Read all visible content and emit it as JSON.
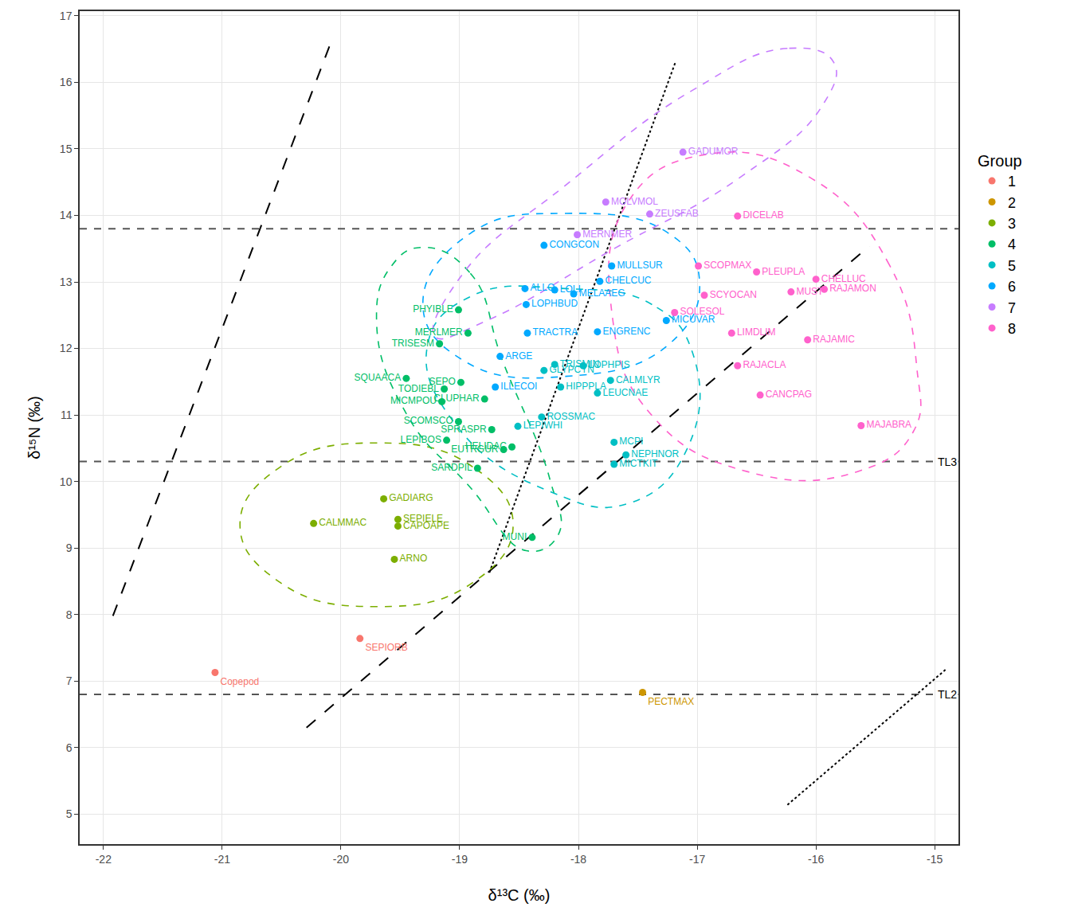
{
  "chart_data": {
    "type": "scatter",
    "x_label": "δ¹³C (‰)",
    "y_label": "δ¹⁵N (‰)",
    "xlim": [
      -22.2,
      -14.8
    ],
    "ylim": [
      4.55,
      17.07
    ],
    "xticks": [
      -22,
      -21,
      -20,
      -19,
      -18,
      -17,
      -16,
      -15
    ],
    "yticks": [
      5,
      6,
      7,
      8,
      9,
      10,
      11,
      12,
      13,
      14,
      15,
      16,
      17
    ],
    "grid": true,
    "legend": "right",
    "legend_title": "Group",
    "marker": "circle",
    "series": [
      {
        "name": "1",
        "color": "#F8766D",
        "labels": [
          "Copepod",
          "SEPIORB"
        ],
        "x": [
          -21.06,
          -19.84
        ],
        "y": [
          7.13,
          7.64
        ],
        "ellipse_x": [],
        "ellipse_y": []
      },
      {
        "name": "2",
        "color": "#CD9600",
        "labels": [
          "PECTMAX"
        ],
        "x": [
          -17.46
        ],
        "y": [
          6.83
        ],
        "ellipse_x": [],
        "ellipse_y": []
      },
      {
        "name": "3",
        "color": "#7CAE00",
        "labels": [
          "GADIARG",
          "SEPIELE",
          "CAPOAPE",
          "CALMMAC",
          "ARNO"
        ],
        "x": [
          -19.64,
          -19.52,
          -19.52,
          -20.23,
          -19.55
        ],
        "y": [
          9.74,
          9.43,
          9.33,
          9.37,
          8.83
        ],
        "ellipse_x": [
          -18.55,
          -18.89,
          -19.7,
          -20.51,
          -20.85,
          -20.51,
          -19.7,
          -18.89
        ],
        "ellipse_y": [
          9.35,
          10.22,
          10.58,
          10.22,
          9.35,
          8.48,
          8.12,
          8.48
        ]
      },
      {
        "name": "4",
        "color": "#00BE67",
        "labels": [
          "PHYIBLE",
          "MERLMER",
          "TRISESM",
          "SQUAACA",
          "SEPO",
          "TODIEBL",
          "MICMPOU",
          "SCOMSCO",
          "LEPIBOS",
          "SARDPIL",
          "EUTRGUR",
          "CLUPHAR",
          "SPRASPR",
          "HELIDAC",
          "MUNI"
        ],
        "x": [
          -19.01,
          -18.93,
          -19.17,
          -19.45,
          -18.99,
          -19.13,
          -19.15,
          -19.01,
          -19.11,
          -18.85,
          -18.63,
          -18.79,
          -18.73,
          -18.56,
          -18.39
        ],
        "y": [
          12.58,
          12.23,
          12.07,
          11.55,
          11.49,
          11.39,
          11.2,
          10.9,
          10.62,
          10.2,
          10.48,
          11.24,
          10.78,
          10.52,
          9.16
        ],
        "ellipse_x": [
          -19.31,
          -18.91,
          -18.64,
          -18.24,
          -18.17,
          -18.44,
          -18.91,
          -19.44,
          -19.7,
          -19.57
        ],
        "ellipse_y": [
          13.52,
          13.13,
          11.82,
          10.03,
          9.2,
          8.96,
          9.91,
          10.99,
          12.42,
          13.25
        ]
      },
      {
        "name": "5",
        "color": "#00BFC4",
        "labels": [
          "TRISMIN",
          "LOPHPIS",
          "GLYPCYN",
          "HIPPPLA",
          "LEUCNAE",
          "CALMLYR",
          "ROSSMAC",
          "LEPIWHI",
          "MCPI",
          "NEPHNOR",
          "MICTKIT"
        ],
        "x": [
          -18.2,
          -17.96,
          -18.29,
          -18.15,
          -17.84,
          -17.73,
          -18.31,
          -18.51,
          -17.7,
          -17.6,
          -17.7
        ],
        "y": [
          11.76,
          11.74,
          11.67,
          11.42,
          11.33,
          11.52,
          10.97,
          10.83,
          10.59,
          10.4,
          10.26
        ],
        "ellipse_x": [
          -17.04,
          -17.38,
          -18.11,
          -18.91,
          -19.27,
          -19.04,
          -18.24,
          -17.58,
          -17.08
        ],
        "ellipse_y": [
          11.94,
          12.66,
          12.9,
          12.78,
          12.06,
          10.87,
          9.85,
          9.67,
          10.51
        ]
      },
      {
        "name": "6",
        "color": "#00A9FF",
        "labels": [
          "CONGCON",
          "ALLO",
          "LOLI",
          "MULLSUR",
          "CHELCUC",
          "MELAAEG",
          "LOPHBUD",
          "TRACTRA",
          "ARGE",
          "ILLECOI",
          "ENGRENC",
          "MICUVAR"
        ],
        "x": [
          -18.29,
          -18.45,
          -18.2,
          -17.72,
          -17.82,
          -18.04,
          -18.44,
          -18.43,
          -18.66,
          -18.7,
          -17.84,
          -17.26
        ],
        "y": [
          13.55,
          12.9,
          12.88,
          13.24,
          13.01,
          12.82,
          12.66,
          12.23,
          11.88,
          11.42,
          12.25,
          12.42
        ],
        "ellipse_x": [
          -16.98,
          -17.24,
          -18.11,
          -18.91,
          -19.31,
          -18.97,
          -18.11,
          -17.24
        ],
        "ellipse_y": [
          13.01,
          13.73,
          14.03,
          13.73,
          12.66,
          11.82,
          11.58,
          12.06
        ]
      },
      {
        "name": "7",
        "color": "#C77CFF",
        "labels": [
          "GADUMOR",
          "MOLVMOL",
          "ZEUSFAB",
          "MERNMER"
        ],
        "x": [
          -17.12,
          -17.77,
          -17.4,
          -18.01
        ],
        "y": [
          14.95,
          14.2,
          14.02,
          13.71
        ],
        "ellipse_x": [
          -15.85,
          -16.24,
          -17.04,
          -18.11,
          -18.97,
          -19.21,
          -18.77,
          -17.71,
          -16.64,
          -15.95
        ],
        "ellipse_y": [
          16.3,
          16.51,
          15.88,
          14.45,
          13.13,
          12.18,
          12.42,
          13.49,
          14.57,
          15.64
        ]
      },
      {
        "name": "8",
        "color": "#FF61CC",
        "labels": [
          "DICELAB",
          "SCOPMAX",
          "PLEUPLA",
          "CHELLUC",
          "RAJAMON",
          "SCYOCAN",
          "MUST",
          "SOLESOL",
          "LIMDLIM",
          "RAJAMIC",
          "RAJACLA",
          "CANCPAG",
          "MAJABRA"
        ],
        "x": [
          -16.66,
          -16.99,
          -16.5,
          -16.0,
          -15.93,
          -16.94,
          -16.21,
          -17.19,
          -16.71,
          -16.07,
          -16.66,
          -16.47,
          -15.62
        ],
        "y": [
          13.99,
          13.24,
          13.15,
          13.04,
          12.89,
          12.8,
          12.85,
          12.54,
          12.23,
          12.13,
          11.74,
          11.3,
          10.84
        ],
        "ellipse_x": [
          -15.15,
          -15.38,
          -16.05,
          -16.91,
          -17.58,
          -17.71,
          -17.38,
          -16.58,
          -15.65,
          -15.18
        ],
        "ellipse_y": [
          11.7,
          13.25,
          14.57,
          14.92,
          14.21,
          12.42,
          10.99,
          10.15,
          10.15,
          10.75
        ]
      }
    ],
    "hlines": [
      {
        "y": 6.8,
        "label": "TL2",
        "line_style": "dash"
      },
      {
        "y": 10.3,
        "label": "TL3",
        "line_style": "dash"
      },
      {
        "y": 13.8,
        "line_style": "dash"
      }
    ],
    "diagonals": [
      {
        "x": [
          -21.92,
          -20.07
        ],
        "y": [
          7.98,
          16.67
        ],
        "line_style": "longdash"
      },
      {
        "x": [
          -20.29,
          -15.55
        ],
        "y": [
          6.3,
          13.54
        ],
        "line_style": "longdash"
      },
      {
        "x": [
          -18.75,
          -17.18
        ],
        "y": [
          8.63,
          16.32
        ],
        "line_style": "dot"
      },
      {
        "x": [
          -16.24,
          -14.91
        ],
        "y": [
          5.14,
          7.17
        ],
        "line_style": "dot"
      }
    ]
  }
}
